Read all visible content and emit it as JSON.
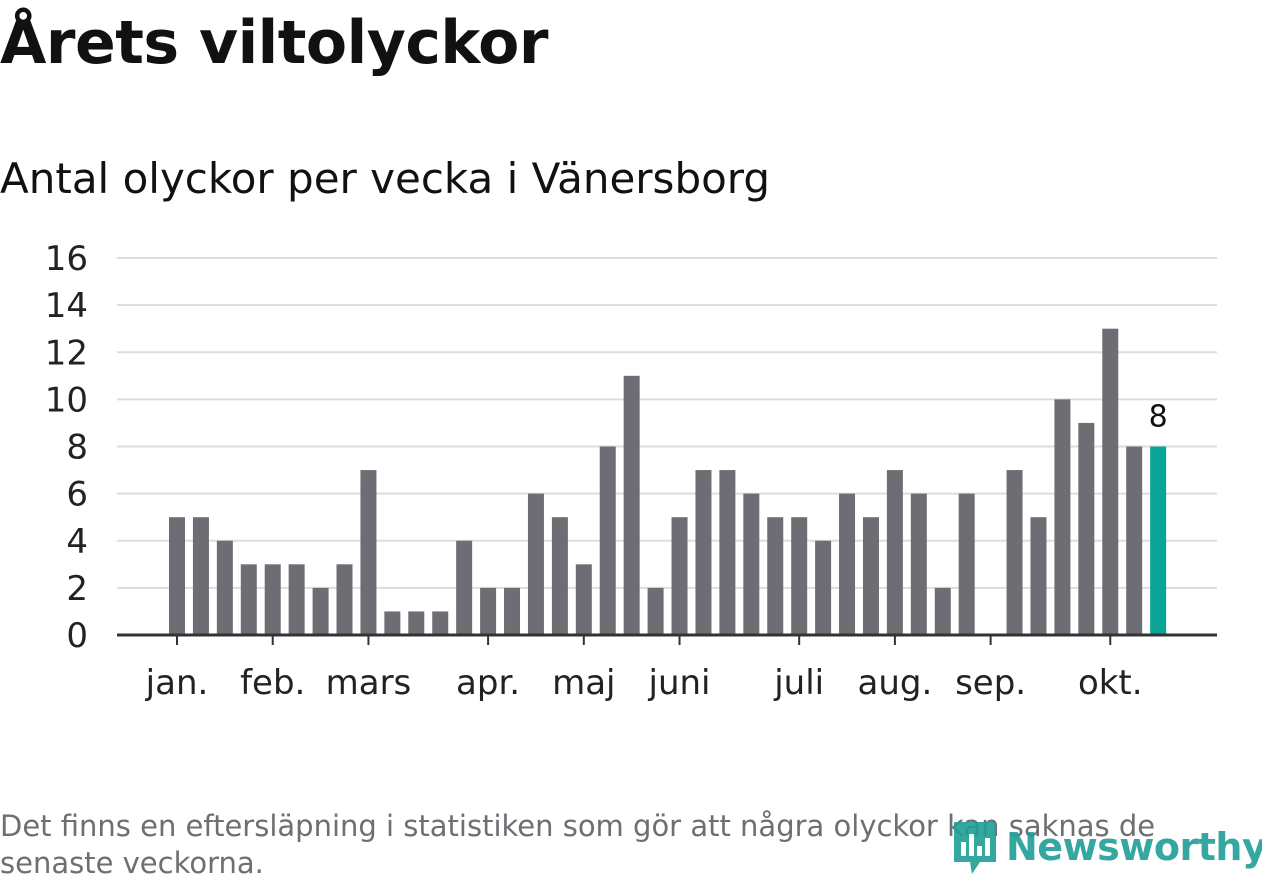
{
  "title": "Årets viltolyckor",
  "footnote": "Det finns en eftersläpning i statistiken som gör att några olyckor kan saknas de senaste veckorna.",
  "brand": {
    "name": "Newsworthy",
    "icon": "newsworthy-logo-icon",
    "color": "#1f9e96"
  },
  "colors": {
    "bar": "#6e6d73",
    "highlight": "#0ba598",
    "grid": "#dddddd",
    "axis": "#333333"
  },
  "chart_data": {
    "type": "bar",
    "title": "Antal olyckor per vecka i Vänersborg",
    "xlabel": "",
    "ylabel": "",
    "ylim": [
      0,
      16
    ],
    "yticks": [
      0,
      2,
      4,
      6,
      8,
      10,
      12,
      14,
      16
    ],
    "grid": true,
    "values": [
      5,
      5,
      4,
      3,
      3,
      3,
      2,
      3,
      7,
      1,
      1,
      1,
      4,
      2,
      2,
      6,
      5,
      3,
      8,
      11,
      2,
      5,
      7,
      7,
      6,
      5,
      5,
      4,
      6,
      5,
      7,
      6,
      2,
      6,
      0,
      7,
      5,
      10,
      9,
      13,
      8,
      8
    ],
    "highlight_index": 41,
    "highlight_label": "8",
    "months": [
      {
        "label": "jan.",
        "week_index": 0
      },
      {
        "label": "feb.",
        "week_index": 4
      },
      {
        "label": "mars",
        "week_index": 8
      },
      {
        "label": "apr.",
        "week_index": 13
      },
      {
        "label": "maj",
        "week_index": 17
      },
      {
        "label": "juni",
        "week_index": 21
      },
      {
        "label": "juli",
        "week_index": 26
      },
      {
        "label": "aug.",
        "week_index": 30
      },
      {
        "label": "sep.",
        "week_index": 34
      },
      {
        "label": "okt.",
        "week_index": 39
      }
    ]
  }
}
